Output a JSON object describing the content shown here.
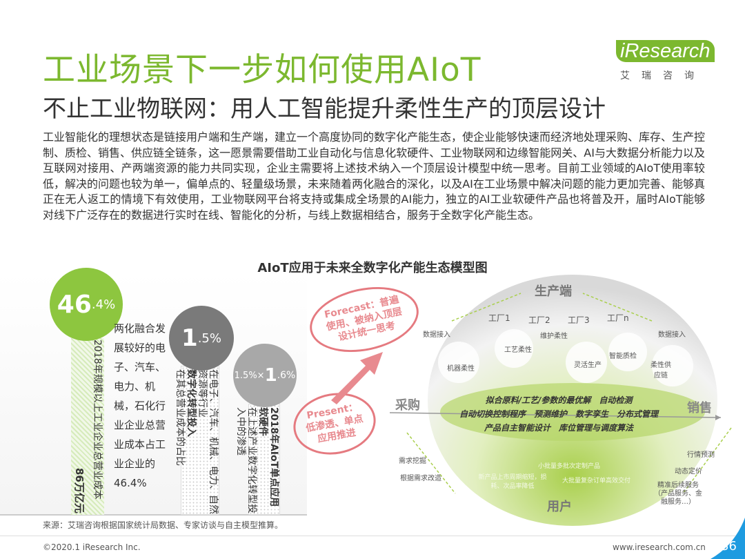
{
  "header": {
    "title": "工业场景下一步如何使用AIoT",
    "subtitle": "不止工业物联网：用人工智能提升柔性生产的顶层设计",
    "logo_brand": "iResearch",
    "logo_cn": "艾瑞咨询"
  },
  "body_text": "工业智能化的理想状态是链接用户端和生产端，建立一个高度协同的数字化产能生态，使企业能够快速而经济地处理采购、库存、生产控制、质检、销售、供应链全链条，这一愿景需要借助工业自动化与信息化软硬件、工业物联网和边缘智能网关、AI与大数据分析能力以及互联网对接用、产两端资源的能力共同实现，企业主需要将上述技术纳入一个顶层设计模型中统一思考。目前工业领域的AIoT使用率较低，解决的问题也较为单一，偏单点的、轻量级场景，未来随着两化融合的深化，以及AI在工业场景中解决问题的能力更加完善、能够真正在无人返工的情境下有效使用，工业物联网平台将支持或集成全场景的AI能力，独立的AI工业软硬件产品也将普及开，届时AIoT能够对线下广泛存在的数据进行实时在线、智能化的分析，与线上数据相结合，服务于全数字化产能生态。",
  "chart_title": "AIoT应用于未来全数字化产能生态模型图",
  "funnel": {
    "col1": {
      "big": "46",
      "small": ".4%",
      "bar_text": "2018年规模以上工业企业总营业成本",
      "bar_bold": "86万亿元",
      "color": "#8dc63f"
    },
    "desc": "两化融合发展较好的电子、汽车、电力、机械，石化行业企业总营业成本占工业企业的46.4%",
    "col2": {
      "big": "1",
      "small": ".5%",
      "bar_text": "在电子、汽车、机械、电力、自然资源等行业",
      "bar_bold": "数字化转型投入",
      "bar_text2": "在其总营业成本的占比",
      "color": "#7a7a7a"
    },
    "col3": {
      "prefix": "1.5%×",
      "big": "1",
      "small": ".6%",
      "bar_bold": "2018年AIoT单点应用软硬件",
      "bar_text": "在上述产业数字化转型投入中的渗透",
      "color": "#a8a8a8"
    }
  },
  "callouts": {
    "forecast": "Forecast：普遍使用、被纳入顶层设计统一思考",
    "present": "Present：低渗透、单点应用推进"
  },
  "model": {
    "top": "生产端",
    "bottom": "用户",
    "left": "采购",
    "right": "销售",
    "factories": [
      "工厂1",
      "工厂2",
      "工厂3",
      "工厂n"
    ],
    "data_in": "数据接入",
    "nodes": [
      "机器柔性",
      "工艺柔性",
      "维护柔性",
      "灵活生产",
      "智能质检",
      "柔性供应链"
    ],
    "ring_rows": [
      [
        "拟合原料/工艺/参数的最优解",
        "自动检测"
      ],
      [
        "自动切换控制程序",
        "预测维护",
        "数字孪生",
        "分布式管理"
      ],
      [
        "产品自主智能设计",
        "库位管理与调度算法"
      ]
    ],
    "user_items": [
      "小批量多批次定制产品",
      "新产品上市周期缩短，损耗、次品率降低",
      "大批量复杂订单高效交付"
    ],
    "left_items": [
      "需求挖掘",
      "根据需求改造"
    ],
    "right_items": [
      "行情预测",
      "动态定价",
      "精准后续服务（产品服务、金融服务…）"
    ]
  },
  "footer": {
    "source": "来源：艾瑞咨询根据国家统计局数据、专家访谈与自主模型推算。",
    "copyright": "©2020.1 iResearch Inc.",
    "site": "www.iresearch.com.cn",
    "page": "36"
  },
  "colors": {
    "accent": "#7cb82f",
    "callout": "#e57a80",
    "page_corner": "#1e9be0"
  }
}
